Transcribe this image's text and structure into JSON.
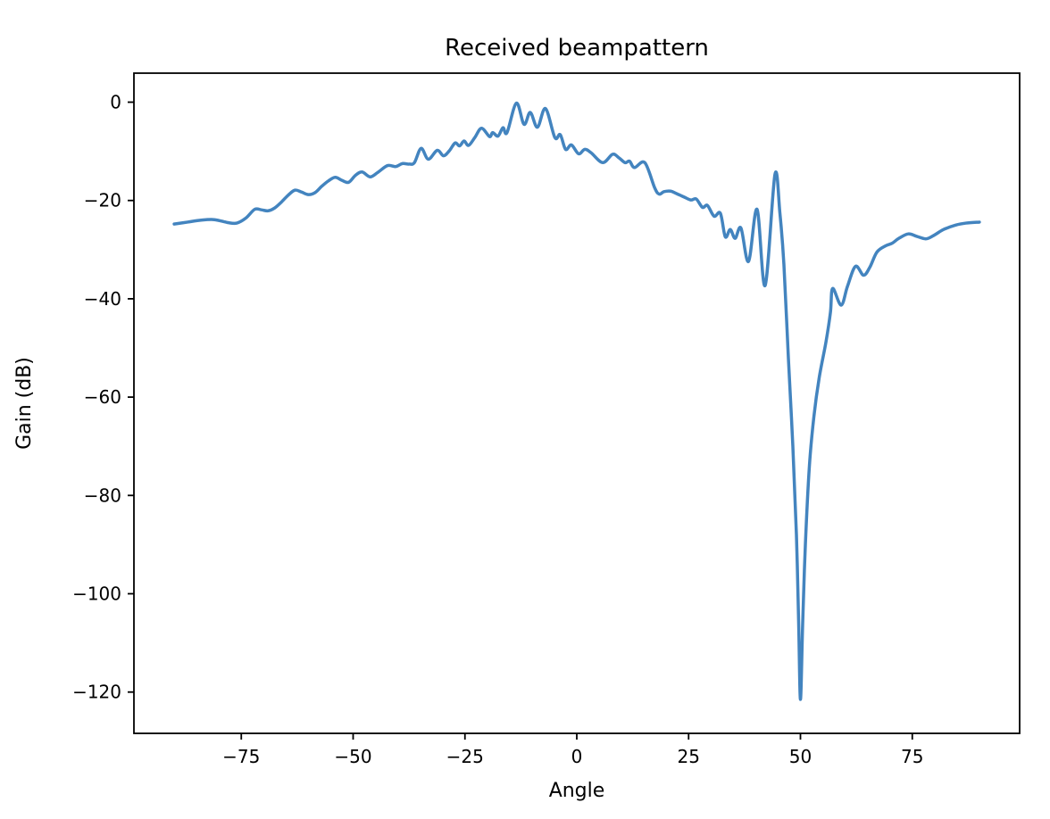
{
  "figure": {
    "background": "#ffffff",
    "text_color": "#000000"
  },
  "chart_data": {
    "type": "line",
    "title": "Received beampattern",
    "xlabel": "Angle",
    "ylabel": "Gain (dB)",
    "grid": false,
    "legend": "none",
    "line_color": "#4384bf",
    "axis_color": "#000000",
    "xlim": [
      -99,
      99
    ],
    "ylim": [
      -128.4,
      5.9
    ],
    "x_ticks": {
      "values": [
        -75,
        -50,
        -25,
        0,
        25,
        50,
        75
      ],
      "labels": [
        "−75",
        "−50",
        "−25",
        "0",
        "25",
        "50",
        "75"
      ]
    },
    "y_ticks": {
      "values": [
        0,
        -20,
        -40,
        -60,
        -80,
        -100,
        -120
      ],
      "labels": [
        "0",
        "−20",
        "−40",
        "−60",
        "−80",
        "−100",
        "−120"
      ]
    },
    "series": [
      {
        "name": "received-beampattern",
        "points": [
          [
            -90.0,
            -24.8
          ],
          [
            -87.0,
            -24.4
          ],
          [
            -84.0,
            -24.0
          ],
          [
            -81.0,
            -23.9
          ],
          [
            -78.0,
            -24.5
          ],
          [
            -76.0,
            -24.6
          ],
          [
            -74.0,
            -23.6
          ],
          [
            -72.0,
            -21.8
          ],
          [
            -70.5,
            -21.9
          ],
          [
            -69.0,
            -22.1
          ],
          [
            -67.5,
            -21.5
          ],
          [
            -66.0,
            -20.3
          ],
          [
            -64.5,
            -18.9
          ],
          [
            -63.0,
            -17.9
          ],
          [
            -61.5,
            -18.3
          ],
          [
            -60.0,
            -18.8
          ],
          [
            -58.5,
            -18.4
          ],
          [
            -57.0,
            -17.1
          ],
          [
            -55.5,
            -16.0
          ],
          [
            -54.0,
            -15.3
          ],
          [
            -52.5,
            -15.9
          ],
          [
            -51.0,
            -16.3
          ],
          [
            -49.5,
            -14.9
          ],
          [
            -48.0,
            -14.2
          ],
          [
            -46.2,
            -15.2
          ],
          [
            -44.5,
            -14.3
          ],
          [
            -42.3,
            -12.9
          ],
          [
            -40.5,
            -13.1
          ],
          [
            -39.0,
            -12.5
          ],
          [
            -37.5,
            -12.6
          ],
          [
            -36.3,
            -12.3
          ],
          [
            -34.8,
            -9.4
          ],
          [
            -33.2,
            -11.6
          ],
          [
            -31.2,
            -9.8
          ],
          [
            -29.8,
            -10.9
          ],
          [
            -28.5,
            -9.9
          ],
          [
            -27.2,
            -8.3
          ],
          [
            -26.2,
            -8.9
          ],
          [
            -25.2,
            -7.9
          ],
          [
            -24.2,
            -8.8
          ],
          [
            -22.8,
            -7.2
          ],
          [
            -21.3,
            -5.3
          ],
          [
            -19.5,
            -7.0
          ],
          [
            -18.8,
            -6.2
          ],
          [
            -17.6,
            -6.9
          ],
          [
            -16.5,
            -5.2
          ],
          [
            -15.6,
            -6.2
          ],
          [
            -13.5,
            -0.2
          ],
          [
            -11.8,
            -4.5
          ],
          [
            -10.4,
            -2.1
          ],
          [
            -8.8,
            -5.1
          ],
          [
            -7.0,
            -1.3
          ],
          [
            -4.9,
            -7.2
          ],
          [
            -3.7,
            -6.6
          ],
          [
            -2.5,
            -9.6
          ],
          [
            -1.2,
            -8.7
          ],
          [
            0.4,
            -10.5
          ],
          [
            1.8,
            -9.6
          ],
          [
            3.2,
            -10.3
          ],
          [
            5.8,
            -12.3
          ],
          [
            8.0,
            -10.6
          ],
          [
            9.4,
            -11.3
          ],
          [
            10.8,
            -12.3
          ],
          [
            11.8,
            -12.0
          ],
          [
            12.9,
            -13.3
          ],
          [
            15.2,
            -12.3
          ],
          [
            17.4,
            -17.4
          ],
          [
            18.4,
            -18.7
          ],
          [
            19.5,
            -18.2
          ],
          [
            21.0,
            -18.1
          ],
          [
            22.3,
            -18.6
          ],
          [
            24.0,
            -19.3
          ],
          [
            25.5,
            -19.9
          ],
          [
            26.7,
            -19.7
          ],
          [
            28.1,
            -21.4
          ],
          [
            29.2,
            -21.0
          ],
          [
            30.7,
            -23.2
          ],
          [
            32.1,
            -22.6
          ],
          [
            33.2,
            -27.4
          ],
          [
            34.3,
            -25.9
          ],
          [
            35.4,
            -27.7
          ],
          [
            36.7,
            -25.6
          ],
          [
            38.4,
            -32.4
          ],
          [
            40.3,
            -21.8
          ],
          [
            42.1,
            -37.3
          ],
          [
            44.3,
            -14.7
          ],
          [
            45.4,
            -22.5
          ],
          [
            46.3,
            -33.0
          ],
          [
            47.3,
            -52.0
          ],
          [
            48.3,
            -70.0
          ],
          [
            49.1,
            -88.0
          ],
          [
            49.6,
            -106.0
          ],
          [
            50.0,
            -121.5
          ],
          [
            50.5,
            -106.0
          ],
          [
            51.1,
            -90.0
          ],
          [
            52.0,
            -74.0
          ],
          [
            53.0,
            -64.0
          ],
          [
            54.2,
            -56.0
          ],
          [
            55.7,
            -48.8
          ],
          [
            56.7,
            -42.8
          ],
          [
            57.2,
            -37.9
          ],
          [
            59.1,
            -41.3
          ],
          [
            60.5,
            -37.5
          ],
          [
            62.3,
            -33.4
          ],
          [
            64.1,
            -35.2
          ],
          [
            65.5,
            -33.6
          ],
          [
            67.1,
            -30.5
          ],
          [
            69.1,
            -29.2
          ],
          [
            70.5,
            -28.7
          ],
          [
            72.0,
            -27.7
          ],
          [
            74.1,
            -26.8
          ],
          [
            76.0,
            -27.3
          ],
          [
            78.1,
            -27.8
          ],
          [
            80.0,
            -27.0
          ],
          [
            82.0,
            -25.9
          ],
          [
            84.7,
            -25.0
          ],
          [
            87.0,
            -24.6
          ],
          [
            90.0,
            -24.4
          ]
        ]
      }
    ]
  }
}
